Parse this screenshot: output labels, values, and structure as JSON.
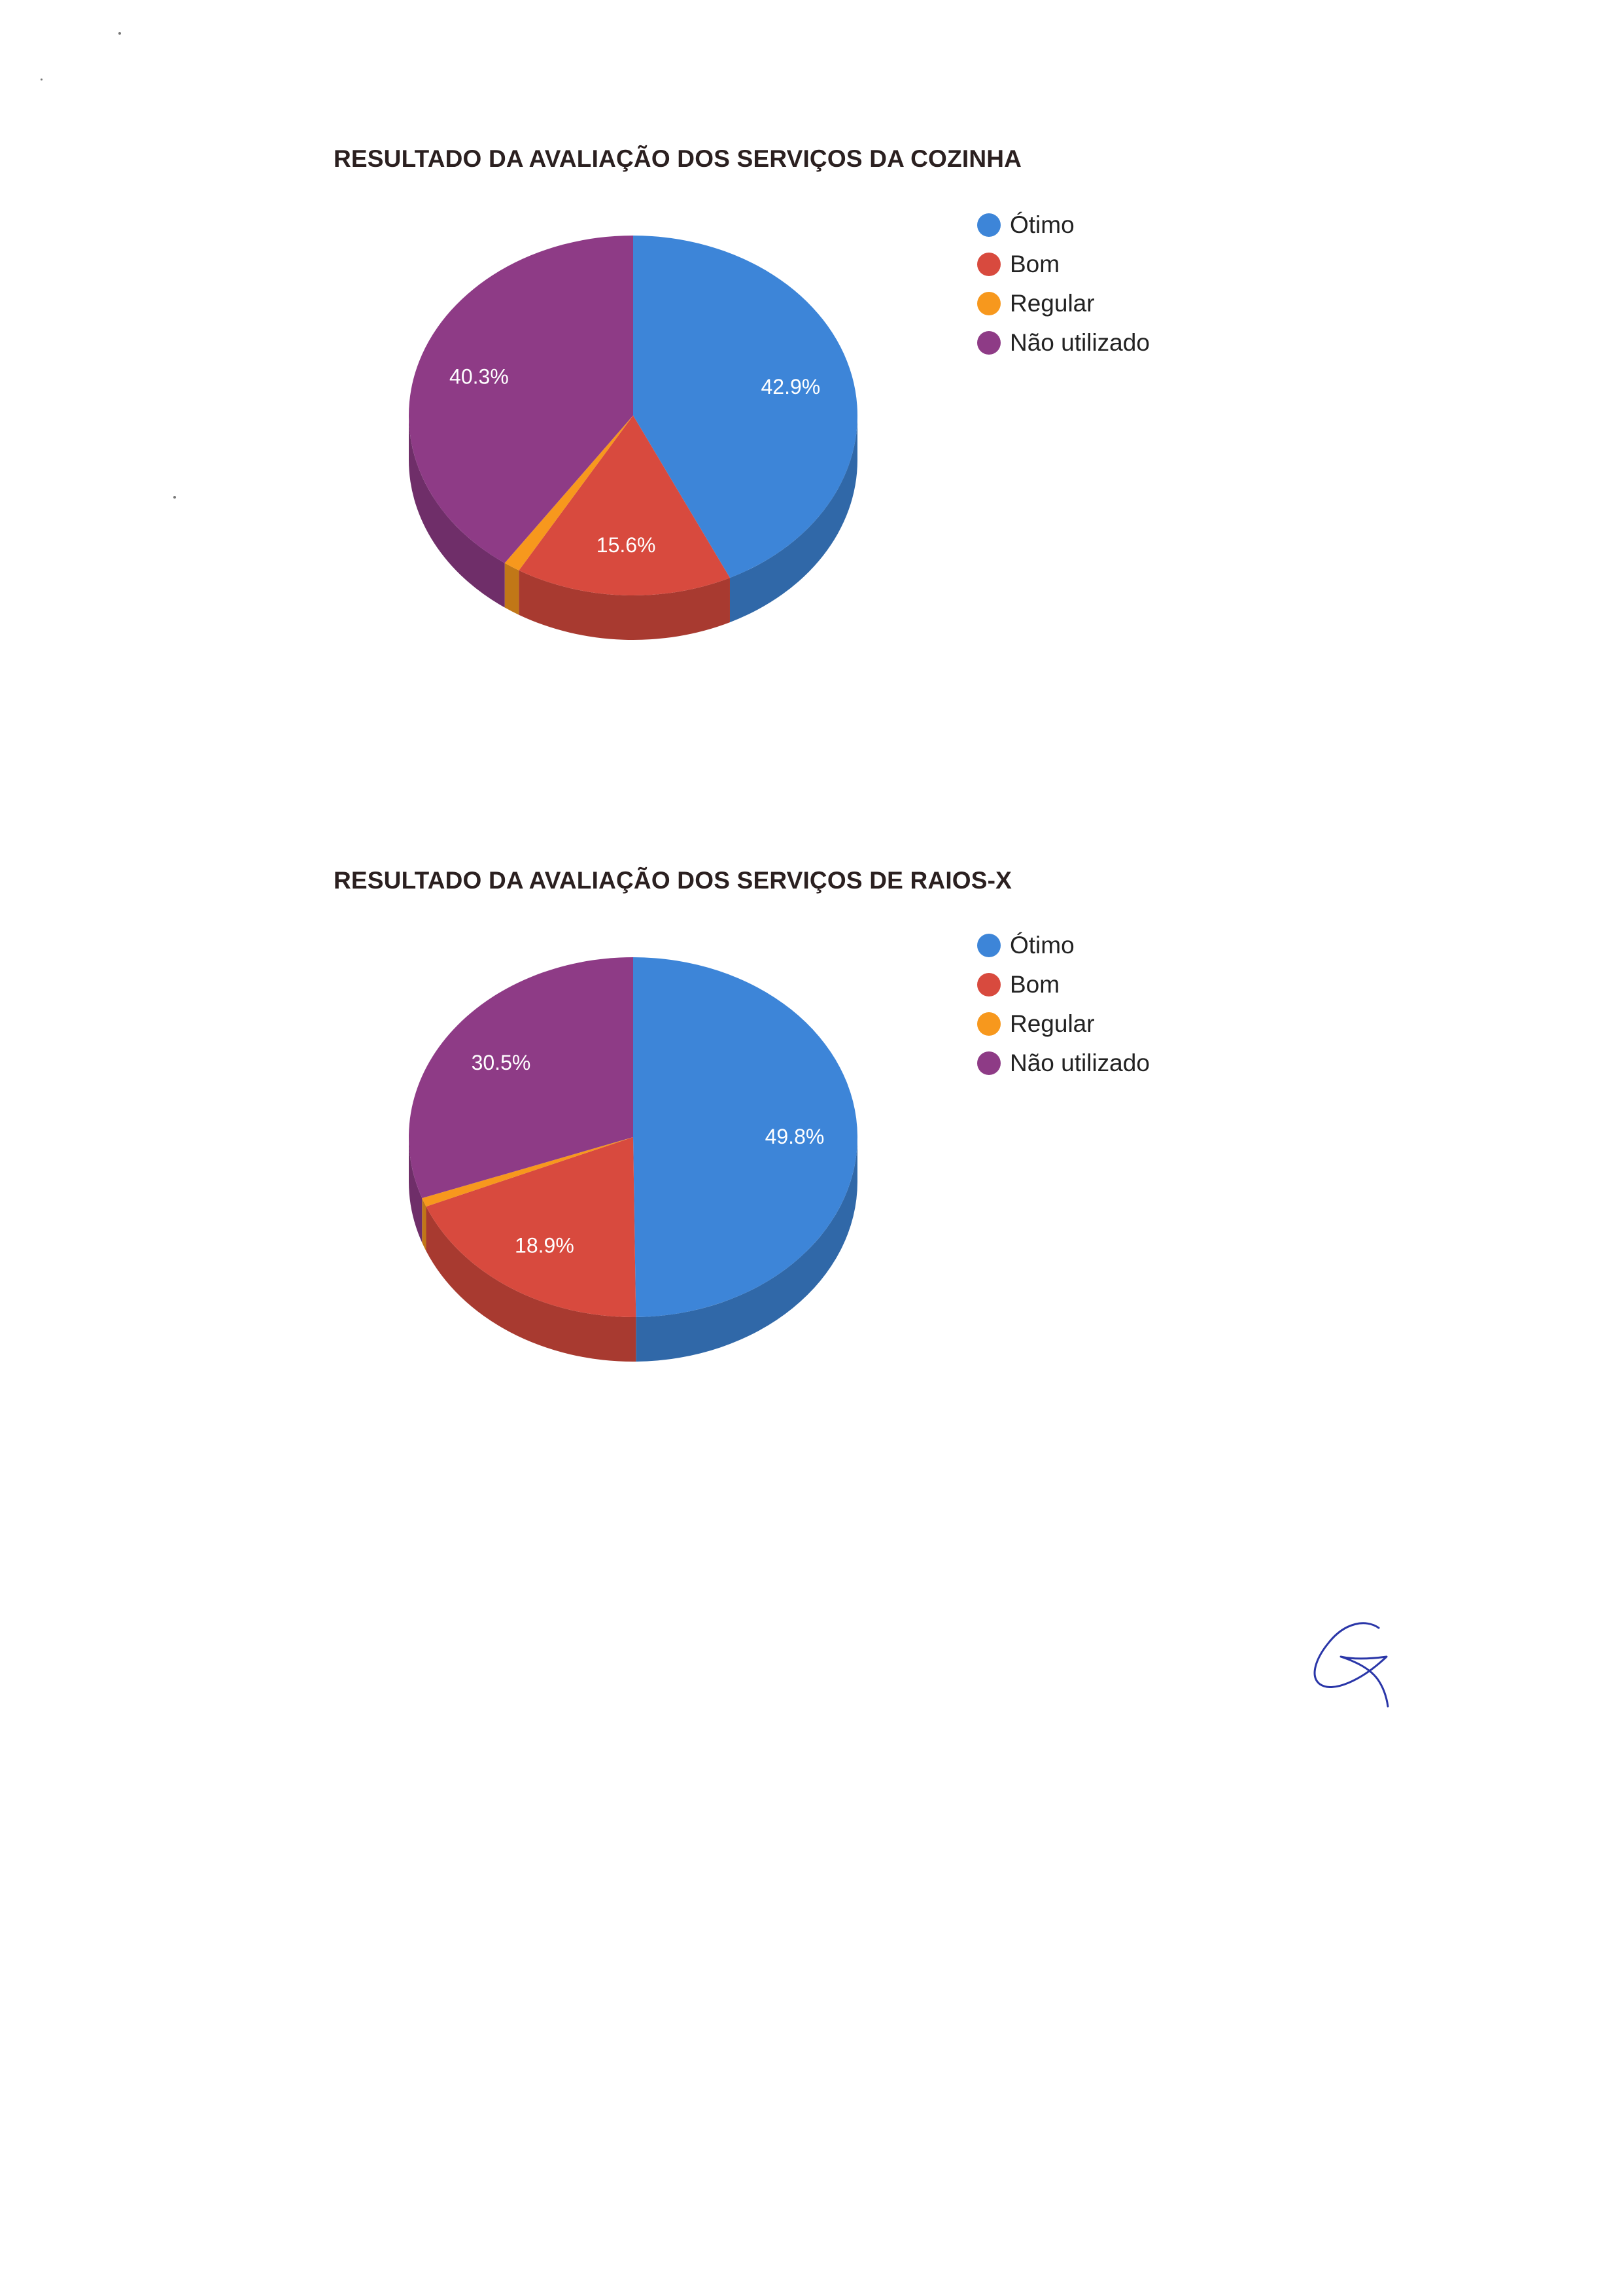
{
  "charts": [
    {
      "title": "RESULTADO DA AVALIAÇÃO DOS SERVIÇOS DA COZINHA",
      "legend": [
        "Ótimo",
        "Bom",
        "Regular",
        "Não utilizado"
      ]
    },
    {
      "title": "RESULTADO DA AVALIAÇÃO DOS SERVIÇOS DE RAIOS-X",
      "legend": [
        "Ótimo",
        "Bom",
        "Regular",
        "Não utilizado"
      ]
    }
  ],
  "chart_data": [
    {
      "type": "pie",
      "title": "RESULTADO DA AVALIAÇÃO DOS SERVIÇOS DA COZINHA",
      "categories": [
        "Ótimo",
        "Bom",
        "Regular",
        "Não utilizado"
      ],
      "values": [
        42.9,
        15.6,
        1.2,
        40.3
      ],
      "labels": [
        "42.9%",
        "15.6%",
        "",
        "40.3%"
      ],
      "colors": [
        "#3d85d8",
        "#d84a3e",
        "#f7981d",
        "#8e3b86"
      ],
      "legend_position": "right",
      "style": "3d"
    },
    {
      "type": "pie",
      "title": "RESULTADO DA AVALIAÇÃO DOS SERVIÇOS DE RAIOS-X",
      "categories": [
        "Ótimo",
        "Bom",
        "Regular",
        "Não utilizado"
      ],
      "values": [
        49.8,
        18.9,
        0.8,
        30.5
      ],
      "labels": [
        "49.8%",
        "18.9%",
        "",
        "30.5%"
      ],
      "colors": [
        "#3d85d8",
        "#d84a3e",
        "#f7981d",
        "#8e3b86"
      ],
      "legend_position": "right",
      "style": "3d"
    }
  ]
}
